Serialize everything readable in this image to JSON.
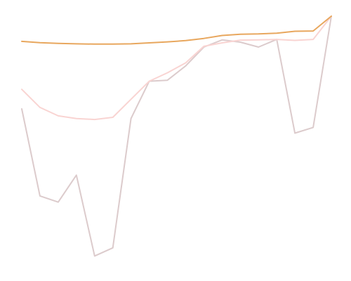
{
  "chart_data": {
    "type": "line",
    "title": "",
    "xlabel": "",
    "ylabel": "",
    "grid": false,
    "legend": "none",
    "axes_visible": false,
    "x": [
      1,
      2,
      3,
      4,
      5,
      6,
      7,
      8,
      9,
      10,
      11,
      12,
      13,
      14,
      15,
      16,
      17,
      18
    ],
    "ylim": [
      0,
      100
    ],
    "series": [
      {
        "color": "#e8a75e",
        "values": [
          89.8,
          89.3,
          89.0,
          88.8,
          88.7,
          88.7,
          88.8,
          89.2,
          89.6,
          90.1,
          91.0,
          92.2,
          92.7,
          92.8,
          93.1,
          93.9,
          94.0,
          100.0
        ]
      },
      {
        "color": "#f9d4d2",
        "values": [
          70.4,
          63.1,
          59.7,
          58.6,
          58.2,
          59.1,
          66.4,
          73.7,
          77.1,
          81.1,
          87.8,
          89.2,
          90.3,
          90.4,
          90.6,
          90.2,
          90.6,
          100.0
        ]
      },
      {
        "color": "#dccbcc",
        "values": [
          62.5,
          27.3,
          24.8,
          35.7,
          3.0,
          6.3,
          58.6,
          73.7,
          74.1,
          79.9,
          87.5,
          90.4,
          89.5,
          87.5,
          90.6,
          52.7,
          55.0,
          100.0
        ]
      }
    ]
  }
}
